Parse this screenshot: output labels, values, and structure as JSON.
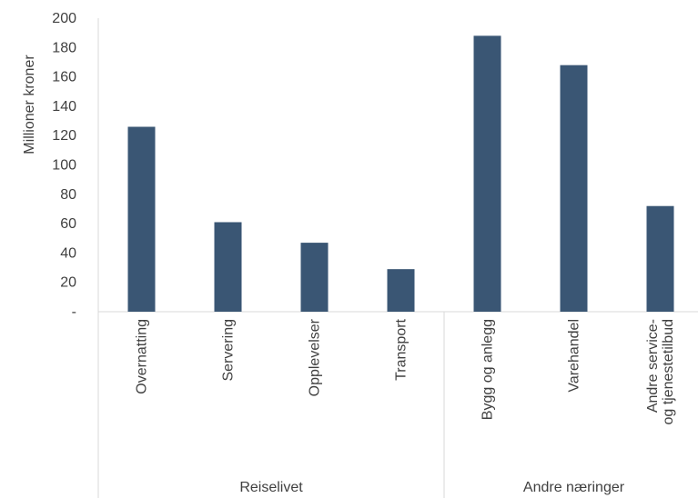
{
  "chart_data": {
    "type": "bar",
    "ylabel": "Millioner kroner",
    "ylim": [
      0,
      200
    ],
    "yticks": [
      "-",
      "20",
      "40",
      "60",
      "80",
      "100",
      "120",
      "140",
      "160",
      "180",
      "200"
    ],
    "categories": [
      "Overnatting",
      "Servering",
      "Opplevelser",
      "Transport",
      "Bygg og anlegg",
      "Varehandel",
      "Andre service- og tjenestetilbud"
    ],
    "values": [
      126,
      61,
      47,
      29,
      188,
      168,
      72
    ],
    "groups": [
      {
        "label": "Reiselivet",
        "count": 4
      },
      {
        "label": "Andre næringer",
        "count": 3
      }
    ],
    "bar_color": "#3a5674",
    "grid": false
  }
}
